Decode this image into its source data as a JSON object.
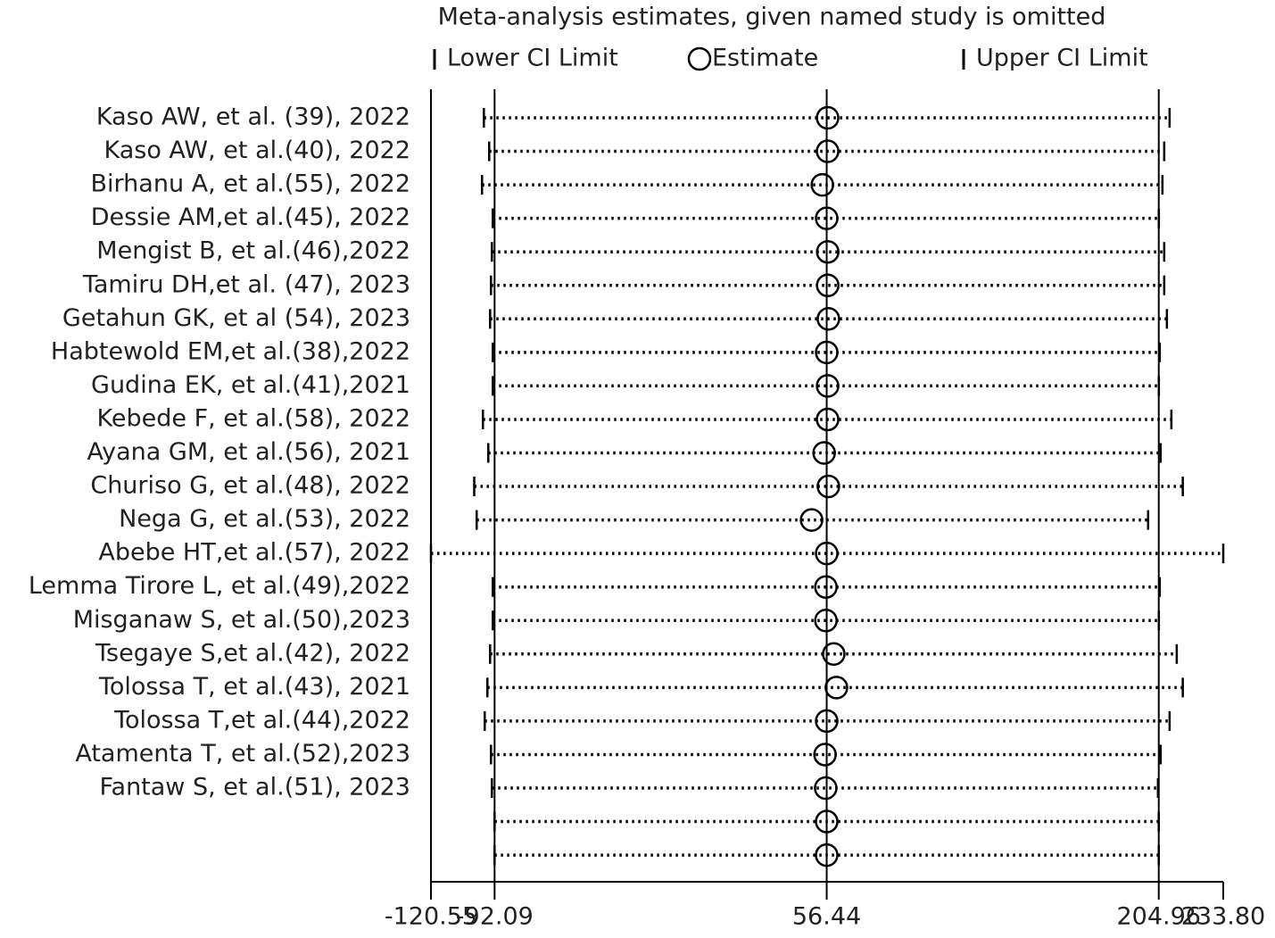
{
  "chart_data": {
    "type": "sensitivity",
    "title": "Meta-analysis estimates, given named study is omitted",
    "categories": [
      "Kaso AW, et al. (39), 2022",
      "Kaso AW, et al.(40), 2022",
      "Birhanu A, et al.(55), 2022",
      "Dessie AM,et al.(45), 2022",
      "Mengist B, et al.(46),2022",
      "Tamiru DH,et al. (47), 2023",
      "Getahun GK, et al (54), 2023",
      "Habtewold EM,et al.(38),2022",
      "Gudina EK, et al.(41),2021",
      "Kebede F, et al.(58), 2022",
      "Ayana GM, et al.(56), 2021",
      "Churiso G, et al.(48), 2022",
      "Nega G, et al.(53), 2022",
      "Abebe HT,et al.(57), 2022",
      "Lemma Tirore L, et al.(49),2022",
      "Misganaw S, et al.(50),2023",
      "Tsegaye S,et al.(42), 2022",
      "Tolossa T, et al.(43), 2021",
      "Tolossa T,et al.(44),2022",
      "Atamenta T, et al.(52),2023",
      "Fantaw S, et al.(51), 2023",
      null,
      null
    ],
    "series": [
      {
        "name": "Lower CI Limit",
        "color": "#000000",
        "values": [
          -96.87,
          -94.5,
          -97.7,
          -92.9,
          -93.3,
          -93.7,
          -94.1,
          -92.9,
          -92.9,
          -97.3,
          -94.9,
          -101.2,
          -100.1,
          -120.55,
          -92.9,
          -92.9,
          -94.1,
          -95.3,
          -96.5,
          -93.7,
          -93.3,
          -92.09,
          -92.09
        ]
      },
      {
        "name": "Estimate",
        "color": "#000000",
        "values": [
          56.85,
          56.85,
          54.5,
          56.44,
          56.9,
          56.9,
          57.2,
          56.44,
          56.85,
          56.85,
          55.3,
          57.2,
          49.7,
          56.44,
          56.1,
          56.1,
          59.6,
          60.8,
          56.44,
          55.7,
          56.0,
          56.44,
          56.44
        ]
      },
      {
        "name": "Upper CI Limit",
        "color": "#000000",
        "values": [
          209.8,
          207.4,
          206.6,
          205.0,
          207.4,
          207.4,
          208.6,
          205.4,
          205.0,
          210.6,
          205.8,
          215.7,
          200.2,
          233.8,
          205.4,
          205.0,
          213.0,
          215.7,
          209.8,
          205.8,
          204.6,
          204.96,
          204.96
        ]
      }
    ],
    "reference_lines": [
      -92.09,
      56.44,
      204.96
    ],
    "xlim": [
      -120.55,
      233.8
    ],
    "xticks": [
      -120.55,
      -92.09,
      56.44,
      204.96,
      {
        "value": 233.8,
        "label": "233.80"
      }
    ]
  }
}
